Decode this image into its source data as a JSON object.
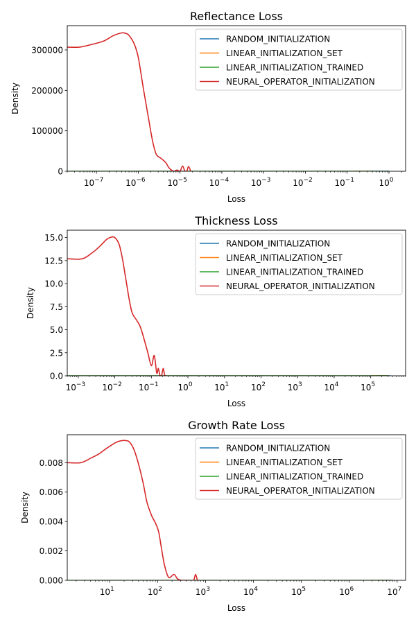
{
  "chart_data": [
    {
      "type": "line",
      "title": "Reflectance Loss",
      "xlabel": "Loss",
      "ylabel": "Density",
      "xscale": "log",
      "xlim": [
        2e-08,
        2.5
      ],
      "ylim": [
        0,
        360000
      ],
      "grid": false,
      "legend": "top-right",
      "xticks": [
        {
          "value": 1e-07,
          "base": "10",
          "exp": "−7"
        },
        {
          "value": 1e-06,
          "base": "10",
          "exp": "−6"
        },
        {
          "value": 1e-05,
          "base": "10",
          "exp": "−5"
        },
        {
          "value": 0.0001,
          "base": "10",
          "exp": "−4"
        },
        {
          "value": 0.001,
          "base": "10",
          "exp": "−3"
        },
        {
          "value": 0.01,
          "base": "10",
          "exp": "−2"
        },
        {
          "value": 0.1,
          "base": "10",
          "exp": "−1"
        },
        {
          "value": 1,
          "base": "10",
          "exp": "0"
        }
      ],
      "yticks": [
        {
          "value": 0,
          "label": "0"
        },
        {
          "value": 100000,
          "label": "100000"
        },
        {
          "value": 200000,
          "label": "200000"
        },
        {
          "value": 300000,
          "label": "300000"
        }
      ],
      "series": [
        {
          "name": "RANDOM_INITIALIZATION",
          "color": "#1f77b4",
          "x": [
            0.3,
            0.5,
            0.7,
            1.0
          ],
          "y": [
            0,
            0,
            0,
            0
          ]
        },
        {
          "name": "LINEAR_INITIALIZATION_SET",
          "color": "#ff7f0e",
          "x": [
            0.15,
            0.25,
            0.4
          ],
          "y": [
            0,
            0,
            0
          ]
        },
        {
          "name": "LINEAR_INITIALIZATION_TRAINED",
          "color": "#2ca02c",
          "x": [
            2e-08,
            1e-06,
            0.0001,
            0.01,
            1.0
          ],
          "y": [
            0,
            0,
            0,
            0,
            0
          ]
        },
        {
          "name": "NEURAL_OPERATOR_INITIALIZATION",
          "color": "#d62728",
          "x": [
            2e-08,
            4e-08,
            8e-08,
            1.5e-07,
            2.5e-07,
            4e-07,
            5e-07,
            6e-07,
            8e-07,
            1e-06,
            1.3e-06,
            1.7e-06,
            2.2e-06,
            2.7e-06,
            3.5e-06,
            4.5e-06,
            5.5e-06,
            7e-06,
            8.5e-06,
            1e-05,
            1.15e-05,
            1.3e-05,
            1.45e-05,
            1.6e-05,
            1.8e-05
          ],
          "y": [
            307000,
            307000,
            314000,
            322000,
            335000,
            342000,
            341000,
            336000,
            315000,
            282000,
            210000,
            140000,
            75000,
            42000,
            32000,
            22000,
            8000,
            0,
            3000,
            0,
            13000,
            1000,
            0,
            12000,
            0
          ]
        }
      ]
    },
    {
      "type": "line",
      "title": "Thickness Loss",
      "xlabel": "Loss",
      "ylabel": "Density",
      "xscale": "log",
      "xlim": [
        0.0005,
        900000
      ],
      "ylim": [
        0,
        15.8
      ],
      "grid": false,
      "legend": "top-right",
      "xticks": [
        {
          "value": 0.001,
          "base": "10",
          "exp": "−3"
        },
        {
          "value": 0.01,
          "base": "10",
          "exp": "−2"
        },
        {
          "value": 0.1,
          "base": "10",
          "exp": "−1"
        },
        {
          "value": 1,
          "base": "10",
          "exp": "0"
        },
        {
          "value": 10,
          "base": "10",
          "exp": "1"
        },
        {
          "value": 100,
          "base": "10",
          "exp": "2"
        },
        {
          "value": 1000,
          "base": "10",
          "exp": "3"
        },
        {
          "value": 10000,
          "base": "10",
          "exp": "4"
        },
        {
          "value": 100000,
          "base": "10",
          "exp": "5"
        }
      ],
      "yticks": [
        {
          "value": 0,
          "label": "0.0"
        },
        {
          "value": 2.5,
          "label": "2.5"
        },
        {
          "value": 5,
          "label": "5.0"
        },
        {
          "value": 7.5,
          "label": "7.5"
        },
        {
          "value": 10,
          "label": "10.0"
        },
        {
          "value": 12.5,
          "label": "12.5"
        },
        {
          "value": 15,
          "label": "15.0"
        }
      ],
      "series": [
        {
          "name": "RANDOM_INITIALIZATION",
          "color": "#1f77b4",
          "x": [
            150000,
            250000,
            350000
          ],
          "y": [
            0,
            0,
            0
          ]
        },
        {
          "name": "LINEAR_INITIALIZATION_SET",
          "color": "#ff7f0e",
          "x": [
            100000,
            200000,
            300000
          ],
          "y": [
            0,
            0,
            0
          ]
        },
        {
          "name": "LINEAR_INITIALIZATION_TRAINED",
          "color": "#2ca02c",
          "x": [
            0.0005,
            0.01,
            1,
            100,
            10000,
            300000
          ],
          "y": [
            0,
            0,
            0,
            0,
            0,
            0
          ]
        },
        {
          "name": "NEURAL_OPERATOR_INITIALIZATION",
          "color": "#d62728",
          "x": [
            0.0005,
            0.0013,
            0.0025,
            0.004,
            0.006,
            0.008,
            0.01,
            0.013,
            0.016,
            0.02,
            0.025,
            0.03,
            0.04,
            0.05,
            0.065,
            0.08,
            0.1,
            0.12,
            0.14,
            0.155,
            0.17,
            0.19,
            0.21,
            0.23,
            0.25
          ],
          "y": [
            12.7,
            12.7,
            13.4,
            14.1,
            14.8,
            15.05,
            15.0,
            14.3,
            12.8,
            10.5,
            8.2,
            6.8,
            6.0,
            5.3,
            3.8,
            2.5,
            1.1,
            2.2,
            0.3,
            0.8,
            0.1,
            0,
            0.8,
            0.1,
            0
          ]
        }
      ]
    },
    {
      "type": "line",
      "title": "Growth Rate Loss",
      "xlabel": "Loss",
      "ylabel": "Density",
      "xscale": "log",
      "xlim": [
        1.3,
        15000000
      ],
      "ylim": [
        0,
        0.0099
      ],
      "grid": false,
      "legend": "top-right",
      "xticks": [
        {
          "value": 10,
          "base": "10",
          "exp": "1"
        },
        {
          "value": 100,
          "base": "10",
          "exp": "2"
        },
        {
          "value": 1000,
          "base": "10",
          "exp": "3"
        },
        {
          "value": 10000,
          "base": "10",
          "exp": "4"
        },
        {
          "value": 100000,
          "base": "10",
          "exp": "5"
        },
        {
          "value": 1000000,
          "base": "10",
          "exp": "6"
        },
        {
          "value": 10000000,
          "base": "10",
          "exp": "7"
        }
      ],
      "yticks": [
        {
          "value": 0,
          "label": "0.000"
        },
        {
          "value": 0.002,
          "label": "0.002"
        },
        {
          "value": 0.004,
          "label": "0.004"
        },
        {
          "value": 0.006,
          "label": "0.006"
        },
        {
          "value": 0.008,
          "label": "0.008"
        }
      ],
      "series": [
        {
          "name": "RANDOM_INITIALIZATION",
          "color": "#1f77b4",
          "x": [
            4000000,
            6000000,
            8000000
          ],
          "y": [
            0,
            0,
            0
          ]
        },
        {
          "name": "LINEAR_INITIALIZATION_SET",
          "color": "#ff7f0e",
          "x": [
            3000000,
            5000000,
            7000000
          ],
          "y": [
            0,
            0,
            0
          ]
        },
        {
          "name": "LINEAR_INITIALIZATION_TRAINED",
          "color": "#2ca02c",
          "x": [
            1.3,
            100,
            10000,
            1000000,
            8000000
          ],
          "y": [
            0,
            0,
            0,
            0,
            0
          ]
        },
        {
          "name": "NEURAL_OPERATOR_INITIALIZATION",
          "color": "#d62728",
          "x": [
            1.3,
            2.5,
            4,
            6,
            8,
            11,
            14,
            18,
            22,
            26,
            32,
            40,
            50,
            60,
            75,
            90,
            105,
            120,
            140,
            170,
            220,
            260,
            320,
            450,
            560,
            620,
            680,
            750
          ],
          "y": [
            0.008,
            0.008,
            0.0083,
            0.0086,
            0.0089,
            0.0092,
            0.0094,
            0.0095,
            0.0095,
            0.0094,
            0.0089,
            0.0079,
            0.0066,
            0.0053,
            0.0044,
            0.0039,
            0.0033,
            0.0022,
            0.001,
            0.0002,
            0.0004,
            0.0001,
            0,
            0,
            0,
            0.0004,
            0,
            0
          ]
        }
      ]
    }
  ]
}
